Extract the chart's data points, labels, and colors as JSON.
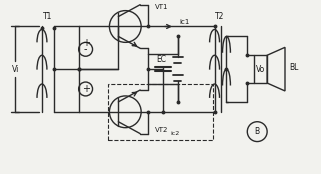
{
  "bg_color": "#f2f2ee",
  "line_color": "#2a2a2a",
  "text_color": "#1a1a1a",
  "fig_width": 3.21,
  "fig_height": 1.74,
  "dpi": 100,
  "labels": {
    "Vi": "Vi",
    "T1": "T1",
    "VT1": "VT1",
    "VT2": "VT2",
    "EC": "EC",
    "ic1": "ic1",
    "ic2": "ic2",
    "T2": "T2",
    "Vo": "Vo",
    "BL": "BL",
    "B": "B",
    "plus": "+",
    "minus": "-"
  }
}
